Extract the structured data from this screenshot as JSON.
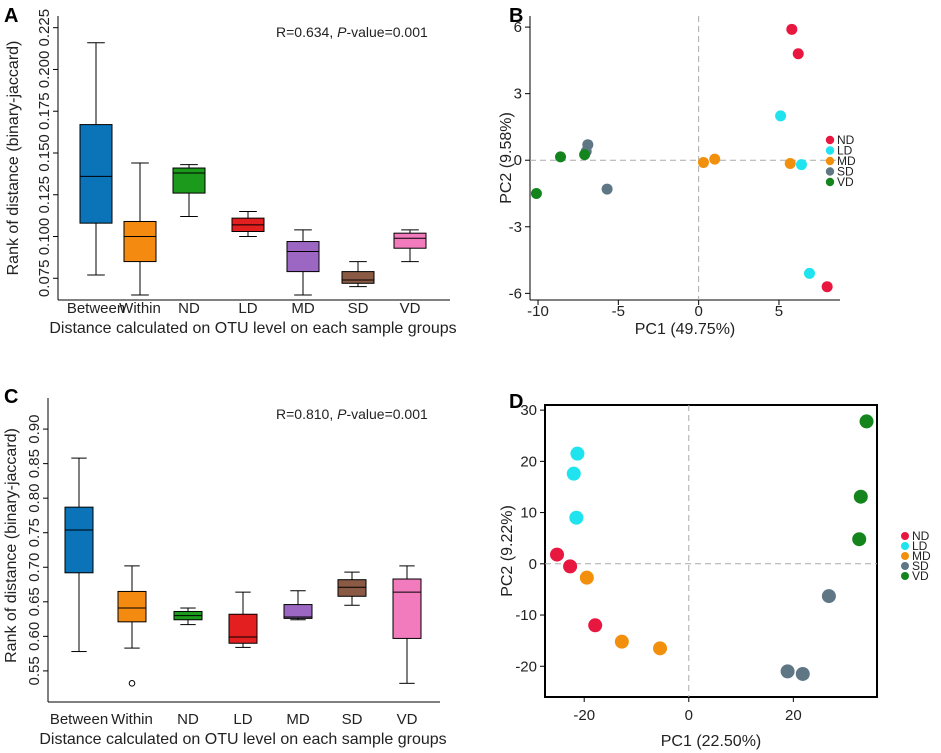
{
  "chart_data": [
    {
      "id": "A",
      "type": "box",
      "panel_label": "A",
      "stat_text_prefix": "R=0.634, ",
      "stat_text_p": "P",
      "stat_text_suffix": "-value=0.001",
      "xlabel": "Distance calculated on OTU level on each sample groups",
      "ylabel": "Rank of distance (binary-jaccard)",
      "ylim": [
        0.062,
        0.232
      ],
      "yticks": [
        0.075,
        0.1,
        0.125,
        0.15,
        0.175,
        0.2,
        0.225
      ],
      "ytick_labels": [
        "0.075",
        "0.100",
        "0.125",
        "0.150",
        "0.175",
        "0.200",
        "0.225"
      ],
      "boxes": [
        {
          "label": "Between",
          "color": "#0B73B8",
          "min": 0.077,
          "q1": 0.108,
          "median": 0.136,
          "q3": 0.167,
          "max": 0.216
        },
        {
          "label": "Within",
          "color": "#F58A10",
          "min": 0.065,
          "q1": 0.085,
          "median": 0.1,
          "q3": 0.109,
          "max": 0.144
        },
        {
          "label": "ND",
          "color": "#1C9A1C",
          "min": 0.112,
          "q1": 0.126,
          "median": 0.138,
          "q3": 0.141,
          "max": 0.143
        },
        {
          "label": "LD",
          "color": "#E41F1F",
          "min": 0.1,
          "q1": 0.103,
          "median": 0.107,
          "q3": 0.111,
          "max": 0.115
        },
        {
          "label": "MD",
          "color": "#9B67C2",
          "min": 0.065,
          "q1": 0.079,
          "median": 0.091,
          "q3": 0.097,
          "max": 0.104
        },
        {
          "label": "SD",
          "color": "#8A5A44",
          "min": 0.07,
          "q1": 0.072,
          "median": 0.074,
          "q3": 0.079,
          "max": 0.085
        },
        {
          "label": "VD",
          "color": "#F27BBE",
          "min": 0.085,
          "q1": 0.093,
          "median": 0.099,
          "q3": 0.102,
          "max": 0.104
        }
      ]
    },
    {
      "id": "B",
      "type": "scatter",
      "panel_label": "B",
      "xlabel": "PC1 (49.75%)",
      "ylabel": "PC2 (9.58%)",
      "xlim": [
        -10.5,
        8.8
      ],
      "ylim": [
        -6.3,
        6.5
      ],
      "xticks": [
        -10,
        -5,
        0,
        5
      ],
      "yticks": [
        -6,
        -3,
        0,
        3,
        6
      ],
      "legend": [
        {
          "label": "ND",
          "color": "#E8173F"
        },
        {
          "label": "LD",
          "color": "#1FE3EE"
        },
        {
          "label": "MD",
          "color": "#F2900E"
        },
        {
          "label": "SD",
          "color": "#5F7685"
        },
        {
          "label": "VD",
          "color": "#14851D"
        }
      ],
      "points": [
        {
          "group": "ND",
          "x": 5.8,
          "y": 5.9
        },
        {
          "group": "ND",
          "x": 6.2,
          "y": 4.8
        },
        {
          "group": "ND",
          "x": 8.0,
          "y": -5.7
        },
        {
          "group": "LD",
          "x": 5.1,
          "y": 2.0
        },
        {
          "group": "LD",
          "x": 6.4,
          "y": -0.2
        },
        {
          "group": "LD",
          "x": 6.9,
          "y": -5.1
        },
        {
          "group": "MD",
          "x": 0.3,
          "y": -0.1
        },
        {
          "group": "MD",
          "x": 1.0,
          "y": 0.05
        },
        {
          "group": "MD",
          "x": 5.7,
          "y": -0.15
        },
        {
          "group": "SD",
          "x": -6.9,
          "y": 0.7
        },
        {
          "group": "SD",
          "x": -7.0,
          "y": 0.4
        },
        {
          "group": "SD",
          "x": -5.7,
          "y": -1.3
        },
        {
          "group": "VD",
          "x": -10.1,
          "y": -1.5
        },
        {
          "group": "VD",
          "x": -8.6,
          "y": 0.15
        },
        {
          "group": "VD",
          "x": -7.1,
          "y": 0.25
        }
      ]
    },
    {
      "id": "C",
      "type": "box",
      "panel_label": "C",
      "stat_text_prefix": "R=0.810, ",
      "stat_text_p": "P",
      "stat_text_suffix": "-value=0.001",
      "xlabel": "Distance calculated on OTU level on each sample groups",
      "ylabel": "Rank of distance (binary-jaccard)",
      "ylim": [
        0.518,
        0.945
      ],
      "yticks": [
        0.55,
        0.6,
        0.65,
        0.7,
        0.75,
        0.8,
        0.85,
        0.9
      ],
      "ytick_labels": [
        "0.55",
        "0.60",
        "0.65",
        "0.70",
        "0.75",
        "0.80",
        "0.85",
        "0.90"
      ],
      "boxes": [
        {
          "label": "Between",
          "color": "#0B73B8",
          "min": 0.578,
          "q1": 0.692,
          "median": 0.754,
          "q3": 0.787,
          "max": 0.858
        },
        {
          "label": "Within",
          "color": "#F58A10",
          "min": 0.583,
          "q1": 0.621,
          "median": 0.641,
          "q3": 0.665,
          "max": 0.702,
          "outliers": [
            0.532
          ]
        },
        {
          "label": "ND",
          "color": "#1C9A1C",
          "min": 0.617,
          "q1": 0.624,
          "median": 0.63,
          "q3": 0.636,
          "max": 0.641
        },
        {
          "label": "LD",
          "color": "#E41F1F",
          "min": 0.584,
          "q1": 0.59,
          "median": 0.599,
          "q3": 0.632,
          "max": 0.664
        },
        {
          "label": "MD",
          "color": "#9B67C2",
          "min": 0.624,
          "q1": 0.626,
          "median": 0.628,
          "q3": 0.646,
          "max": 0.666
        },
        {
          "label": "SD",
          "color": "#8A5A44",
          "min": 0.645,
          "q1": 0.658,
          "median": 0.671,
          "q3": 0.682,
          "max": 0.693
        },
        {
          "label": "VD",
          "color": "#F27BBE",
          "min": 0.532,
          "q1": 0.597,
          "median": 0.664,
          "q3": 0.683,
          "max": 0.702
        }
      ]
    },
    {
      "id": "D",
      "type": "scatter",
      "panel_label": "D",
      "xlabel": "PC1 (22.50%)",
      "ylabel": "PC2 (9.22%)",
      "xlim": [
        -27.5,
        36.0
      ],
      "ylim": [
        -26.0,
        31.0
      ],
      "xticks": [
        -20,
        0,
        20
      ],
      "yticks": [
        -20,
        -10,
        0,
        10,
        20,
        30
      ],
      "legend": [
        {
          "label": "ND",
          "color": "#E8173F"
        },
        {
          "label": "LD",
          "color": "#1FE3EE"
        },
        {
          "label": "MD",
          "color": "#F2900E"
        },
        {
          "label": "SD",
          "color": "#5F7685"
        },
        {
          "label": "VD",
          "color": "#14851D"
        }
      ],
      "points": [
        {
          "group": "ND",
          "x": -25.2,
          "y": 1.8
        },
        {
          "group": "ND",
          "x": -22.7,
          "y": -0.5
        },
        {
          "group": "ND",
          "x": -17.9,
          "y": -12.0
        },
        {
          "group": "LD",
          "x": -21.3,
          "y": 21.5
        },
        {
          "group": "LD",
          "x": -22.0,
          "y": 17.6
        },
        {
          "group": "LD",
          "x": -21.5,
          "y": 9.0
        },
        {
          "group": "MD",
          "x": -19.5,
          "y": -2.7
        },
        {
          "group": "MD",
          "x": -12.8,
          "y": -15.2
        },
        {
          "group": "MD",
          "x": -5.5,
          "y": -16.5
        },
        {
          "group": "SD",
          "x": 26.8,
          "y": -6.3
        },
        {
          "group": "SD",
          "x": 18.9,
          "y": -21.0
        },
        {
          "group": "SD",
          "x": 21.8,
          "y": -21.5
        },
        {
          "group": "VD",
          "x": 34.0,
          "y": 27.8
        },
        {
          "group": "VD",
          "x": 32.9,
          "y": 13.1
        },
        {
          "group": "VD",
          "x": 32.6,
          "y": 4.8
        }
      ]
    }
  ]
}
